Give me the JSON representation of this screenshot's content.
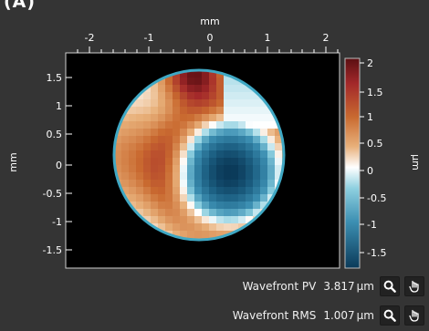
{
  "panel": {
    "label": "(A)"
  },
  "plot": {
    "x_unit": "mm",
    "y_unit": "mm",
    "colorbar_unit": "µm",
    "x_ticks": [
      "-2",
      "-1",
      "0",
      "1",
      "2"
    ],
    "y_ticks": [
      "1.5",
      "1",
      "0.5",
      "0",
      "-0.5",
      "-1",
      "-1.5"
    ],
    "colorbar_ticks": [
      "2",
      "1.5",
      "1",
      "0.5",
      "0",
      "-0.5",
      "-1",
      "-1.5"
    ],
    "colormap": {
      "low": "#0b3a59",
      "mid": "#ffffff",
      "high": "#5b0f12"
    },
    "pupil_circle_color": "#3fa8c4"
  },
  "metrics": [
    {
      "id": "pv",
      "label": "Wavefront PV",
      "value": "3.817",
      "unit": "µm"
    },
    {
      "id": "rms",
      "label": "Wavefront RMS",
      "value": "1.007",
      "unit": "µm"
    }
  ],
  "icons": {
    "zoom": "magnifier-icon",
    "detach": "hand-pointer-icon"
  }
}
